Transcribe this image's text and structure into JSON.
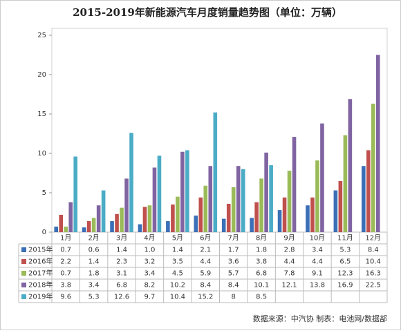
{
  "chart_data": {
    "type": "bar",
    "title": "2015-2019年新能源汽车月度销量趋势图（单位：万辆）",
    "source": "数据来源：中汽协  制表：电池网/数据部",
    "categories": [
      "1月",
      "2月",
      "3月",
      "4月",
      "5月",
      "6月",
      "7月",
      "8月",
      "9月",
      "10月",
      "11月",
      "12月"
    ],
    "ylim": [
      0,
      25
    ],
    "yticks": [
      0,
      5,
      10,
      15,
      20,
      25
    ],
    "grid": false,
    "series": [
      {
        "name": "2015年",
        "color": "#3b6fb6",
        "values": [
          0.7,
          0.6,
          1.4,
          1.0,
          1.4,
          2.1,
          1.7,
          1.8,
          2.8,
          3.4,
          5.3,
          8.4
        ],
        "value_labels": [
          "0.7",
          "0.6",
          "1.4",
          "1.0",
          "1.4",
          "2.1",
          "1.7",
          "1.8",
          "2.8",
          "3.4",
          "5.3",
          "8.4"
        ]
      },
      {
        "name": "2016年",
        "color": "#c0504d",
        "values": [
          2.2,
          1.4,
          2.3,
          3.2,
          3.5,
          4.4,
          3.6,
          3.8,
          4.4,
          4.4,
          6.5,
          10.4
        ]
      },
      {
        "name": "2017年",
        "color": "#9bbb59",
        "values": [
          0.7,
          1.8,
          3.1,
          3.4,
          4.5,
          5.9,
          5.7,
          6.8,
          7.8,
          9.1,
          12.3,
          16.3
        ]
      },
      {
        "name": "2018年",
        "color": "#8064a2",
        "values": [
          3.8,
          3.4,
          6.8,
          8.2,
          10.2,
          8.4,
          8.4,
          10.1,
          12.1,
          13.8,
          16.9,
          22.5
        ]
      },
      {
        "name": "2019年",
        "color": "#4bacc6",
        "values": [
          9.6,
          5.3,
          12.6,
          9.7,
          10.4,
          15.2,
          8,
          8.5,
          null,
          null,
          null,
          null
        ]
      }
    ]
  }
}
